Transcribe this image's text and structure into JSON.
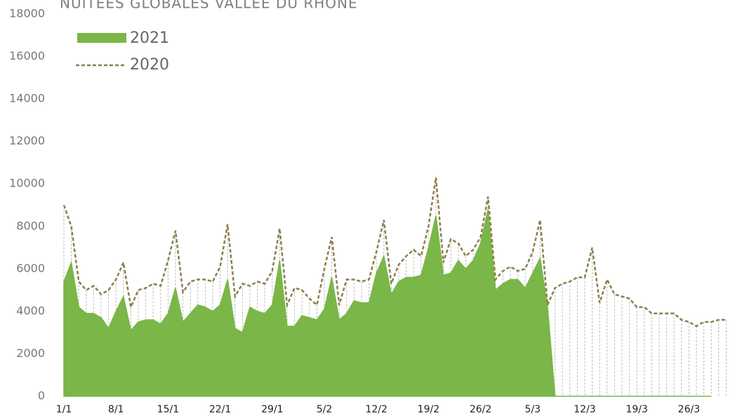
{
  "chart_data": {
    "type": "area_line",
    "title": "NUITÉES GLOBALES VALLÉE DU RHÔNE",
    "categories": [
      "1/1",
      null,
      null,
      null,
      null,
      null,
      null,
      "8/1",
      null,
      null,
      null,
      null,
      null,
      null,
      "15/1",
      null,
      null,
      null,
      null,
      null,
      null,
      "22/1",
      null,
      null,
      null,
      null,
      null,
      null,
      "29/1",
      null,
      null,
      null,
      null,
      null,
      null,
      "5/2",
      null,
      null,
      null,
      null,
      null,
      null,
      "12/2",
      null,
      null,
      null,
      null,
      null,
      null,
      "19/2",
      null,
      null,
      null,
      null,
      null,
      null,
      "26/2",
      null,
      null,
      null,
      null,
      null,
      null,
      "5/3",
      null,
      null,
      null,
      null,
      null,
      null,
      "12/3",
      null,
      null,
      null,
      null,
      null,
      null,
      "19/3",
      null,
      null,
      null,
      null,
      null,
      null,
      "26/3",
      null,
      null,
      null,
      null,
      null
    ],
    "series": [
      {
        "name": "2021",
        "color": "#7ab648",
        "values": [
          5400,
          6300,
          4200,
          3900,
          3900,
          3700,
          3200,
          4000,
          4700,
          3100,
          3500,
          3600,
          3600,
          3400,
          3900,
          5100,
          3500,
          3900,
          4300,
          4200,
          4000,
          4300,
          5500,
          3200,
          3000,
          4200,
          4000,
          3900,
          4300,
          6400,
          3300,
          3300,
          3800,
          3700,
          3600,
          4100,
          5600,
          3600,
          3900,
          4500,
          4400,
          4400,
          5800,
          6600,
          4800,
          5400,
          5600,
          5600,
          5700,
          7000,
          8500,
          5700,
          5800,
          6400,
          6000,
          6400,
          7200,
          8800,
          5000,
          5300,
          5500,
          5500,
          5100,
          5800,
          6500,
          4200,
          0,
          0,
          0,
          0,
          0,
          0,
          0,
          0,
          0,
          0,
          0,
          0,
          0,
          0,
          0,
          0,
          0,
          0,
          0,
          0,
          0,
          0,
          null,
          null
        ]
      },
      {
        "name": "2020",
        "color": "#8c7f4e",
        "values": [
          9000,
          8000,
          5400,
          5000,
          5200,
          4800,
          5000,
          5500,
          6300,
          4200,
          5000,
          5100,
          5300,
          5200,
          6400,
          7800,
          4900,
          5400,
          5500,
          5500,
          5400,
          6100,
          8100,
          4700,
          5300,
          5200,
          5400,
          5300,
          5900,
          7900,
          4300,
          5100,
          5000,
          4600,
          4300,
          6000,
          7500,
          4300,
          5500,
          5500,
          5400,
          5500,
          6800,
          8300,
          5300,
          6200,
          6600,
          6900,
          6600,
          8000,
          10300,
          6300,
          7400,
          7200,
          6600,
          6900,
          7500,
          9400,
          5500,
          5900,
          6100,
          5900,
          6000,
          6800,
          8300,
          4300,
          5100,
          5300,
          5400,
          5600,
          5600,
          7000,
          4400,
          5500,
          4800,
          4700,
          4600,
          4200,
          4200,
          3900,
          3900,
          3900,
          3900,
          3600,
          3500,
          3300,
          3500,
          3500,
          3600,
          3600
        ]
      }
    ],
    "ylim": [
      0,
      18000
    ],
    "yticks": [
      0,
      2000,
      4000,
      6000,
      8000,
      10000,
      12000,
      14000,
      16000,
      18000
    ]
  }
}
